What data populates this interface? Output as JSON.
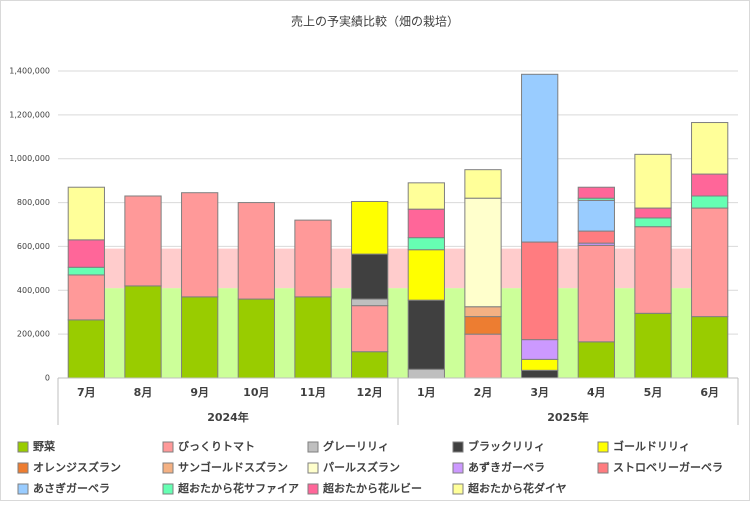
{
  "chart_data": {
    "type": "stacked_bar",
    "title": "売上の予実績比較（畑の栽培）",
    "categories": [
      "7月",
      "8月",
      "9月",
      "10月",
      "11月",
      "12月",
      "1月",
      "2月",
      "3月",
      "4月",
      "5月",
      "6月"
    ],
    "groups": [
      {
        "label": "2024年",
        "count": 6
      },
      {
        "label": "2025年",
        "count": 6
      }
    ],
    "ylim": [
      0,
      1400000
    ],
    "yticks": [
      0,
      {
        "value": 200000,
        "label": "200,000"
      },
      {
        "value": 400000,
        "label": "400,000"
      },
      {
        "value": 600000,
        "label": "600,000"
      },
      {
        "value": 800000,
        "label": "800,000"
      },
      {
        "value": 1000000,
        "label": "1,000,000"
      },
      {
        "value": 1200000,
        "label": "1,200,000"
      },
      {
        "value": 1400000,
        "label": "1,400,000"
      }
    ],
    "grid": true,
    "area_series": [
      {
        "color": "#ccff99",
        "values": [
          410000,
          410000,
          410000,
          410000,
          410000,
          410000,
          410000,
          410000,
          410000,
          410000,
          410000,
          410000
        ]
      },
      {
        "color": "#ffcccc",
        "values": [
          180000,
          180000,
          180000,
          180000,
          180000,
          180000,
          180000,
          180000,
          180000,
          180000,
          180000,
          180000
        ]
      }
    ],
    "series": [
      {
        "name": "野菜",
        "color": "#99cc00",
        "values": [
          265000,
          420000,
          370000,
          360000,
          370000,
          120000,
          0,
          0,
          0,
          165000,
          295000,
          280000
        ]
      },
      {
        "name": "びっくりトマト",
        "color": "#ff9999",
        "values": [
          205000,
          410000,
          475000,
          440000,
          350000,
          210000,
          0,
          200000,
          0,
          440000,
          395000,
          495000
        ]
      },
      {
        "name": "グレーリリィ",
        "color": "#bfbfbf",
        "values": [
          0,
          0,
          0,
          0,
          0,
          30000,
          40000,
          0,
          0,
          0,
          0,
          0
        ]
      },
      {
        "name": "ブラックリリィ",
        "color": "#404040",
        "values": [
          0,
          0,
          0,
          0,
          0,
          205000,
          315000,
          0,
          35000,
          0,
          0,
          0
        ]
      },
      {
        "name": "ゴールドリリィ",
        "color": "#ffff00",
        "values": [
          0,
          0,
          0,
          0,
          0,
          240000,
          230000,
          0,
          50000,
          0,
          0,
          0
        ]
      },
      {
        "name": "オレンジスズラン",
        "color": "#ed7d31",
        "values": [
          0,
          0,
          0,
          0,
          0,
          0,
          0,
          80000,
          0,
          0,
          0,
          0
        ]
      },
      {
        "name": "サンゴールドスズラン",
        "color": "#f4b183",
        "values": [
          0,
          0,
          0,
          0,
          0,
          0,
          0,
          45000,
          0,
          0,
          0,
          0
        ]
      },
      {
        "name": "パールスズラン",
        "color": "#ffffcc",
        "values": [
          0,
          0,
          0,
          0,
          0,
          0,
          0,
          495000,
          0,
          0,
          0,
          0
        ]
      },
      {
        "name": "あずきガーベラ",
        "color": "#cc99ff",
        "values": [
          0,
          0,
          0,
          0,
          0,
          0,
          0,
          0,
          90000,
          10000,
          0,
          0
        ]
      },
      {
        "name": "ストロベリーガーベラ",
        "color": "#ff7c80",
        "values": [
          0,
          0,
          0,
          0,
          0,
          0,
          0,
          0,
          445000,
          55000,
          0,
          0
        ]
      },
      {
        "name": "あさぎガーベラ",
        "color": "#99ccff",
        "values": [
          0,
          0,
          0,
          0,
          0,
          0,
          0,
          0,
          765000,
          140000,
          0,
          0
        ]
      },
      {
        "name": "超おたから花サファイア",
        "color": "#66ffb3",
        "values": [
          35000,
          0,
          0,
          0,
          0,
          0,
          55000,
          0,
          0,
          10000,
          40000,
          55000
        ]
      },
      {
        "name": "超おたから花ルビー",
        "color": "#ff6699",
        "values": [
          125000,
          0,
          0,
          0,
          0,
          0,
          130000,
          0,
          0,
          50000,
          45000,
          100000
        ]
      },
      {
        "name": "超おたから花ダイヤ",
        "color": "#ffff99",
        "values": [
          240000,
          0,
          0,
          0,
          0,
          0,
          120000,
          130000,
          0,
          0,
          245000,
          235000
        ]
      }
    ]
  }
}
